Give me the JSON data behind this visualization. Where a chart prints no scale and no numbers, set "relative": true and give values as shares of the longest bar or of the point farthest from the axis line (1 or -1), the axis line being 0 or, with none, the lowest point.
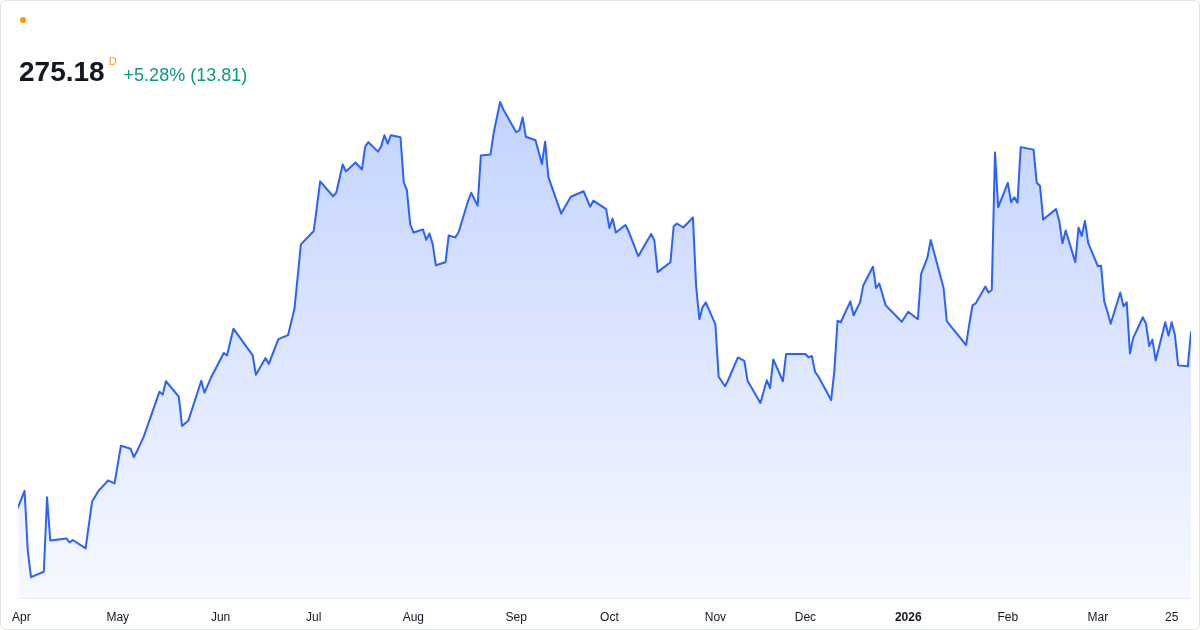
{
  "chart_data": {
    "type": "area",
    "title": "275.18$^{D}$",
    "subtitle": "+5.28% (13.81)",
    "relative": true,
    "tick_labels": "x",
    "xlim": [
      "2025-03-31",
      "2026-03-31"
    ],
    "xticks": [
      {
        "value": "2025-04-01",
        "label": "Apr"
      },
      {
        "value": "2025-05-01",
        "label": "May"
      },
      {
        "value": "2025-06-02",
        "label": "Jun"
      },
      {
        "value": "2025-07-01",
        "label": "Jul"
      },
      {
        "value": "2025-08-01",
        "label": "Aug"
      },
      {
        "value": "2025-09-02",
        "label": "Sep"
      },
      {
        "value": "2025-10-01",
        "label": "Oct"
      },
      {
        "value": "2025-11-03",
        "label": "Nov"
      },
      {
        "value": "2025-12-01",
        "label": "Dec"
      },
      {
        "value": "2026-01-02",
        "label": "2026"
      },
      {
        "value": "2026-02-02",
        "label": "Feb"
      },
      {
        "value": "2026-03-02",
        "label": "Mar"
      },
      {
        "value": "2026-03-25",
        "label": "25"
      }
    ],
    "x": [
      "2025-03-31",
      "2025-04-02",
      "2025-04-03",
      "2025-04-04",
      "2025-04-08",
      "2025-04-09",
      "2025-04-10",
      "2025-04-15",
      "2025-04-16",
      "2025-04-17",
      "2025-04-21",
      "2025-04-23",
      "2025-04-25",
      "2025-04-28",
      "2025-04-30",
      "2025-05-02",
      "2025-05-05",
      "2025-05-06",
      "2025-05-07",
      "2025-05-09",
      "2025-05-14",
      "2025-05-15",
      "2025-05-16",
      "2025-05-20",
      "2025-05-21",
      "2025-05-23",
      "2025-05-27",
      "2025-05-28",
      "2025-05-30",
      "2025-06-03",
      "2025-06-04",
      "2025-06-06",
      "2025-06-12",
      "2025-06-13",
      "2025-06-16",
      "2025-06-17",
      "2025-06-20",
      "2025-06-23",
      "2025-06-25",
      "2025-06-27",
      "2025-07-01",
      "2025-07-03",
      "2025-07-07",
      "2025-07-08",
      "2025-07-10",
      "2025-07-11",
      "2025-07-14",
      "2025-07-16",
      "2025-07-17",
      "2025-07-18",
      "2025-07-21",
      "2025-07-22",
      "2025-07-23",
      "2025-07-24",
      "2025-07-25",
      "2025-07-28",
      "2025-07-29",
      "2025-07-30",
      "2025-07-31",
      "2025-08-01",
      "2025-08-04",
      "2025-08-05",
      "2025-08-06",
      "2025-08-07",
      "2025-08-08",
      "2025-08-11",
      "2025-08-12",
      "2025-08-14",
      "2025-08-15",
      "2025-08-18",
      "2025-08-19",
      "2025-08-21",
      "2025-08-22",
      "2025-08-25",
      "2025-08-26",
      "2025-08-28",
      "2025-08-29",
      "2025-09-02",
      "2025-09-03",
      "2025-09-04",
      "2025-09-05",
      "2025-09-08",
      "2025-09-10",
      "2025-09-11",
      "2025-09-12",
      "2025-09-16",
      "2025-09-19",
      "2025-09-23",
      "2025-09-25",
      "2025-09-26",
      "2025-09-30",
      "2025-10-01",
      "2025-10-02",
      "2025-10-03",
      "2025-10-06",
      "2025-10-07",
      "2025-10-10",
      "2025-10-14",
      "2025-10-15",
      "2025-10-16",
      "2025-10-20",
      "2025-10-21",
      "2025-10-22",
      "2025-10-24",
      "2025-10-27",
      "2025-10-28",
      "2025-10-29",
      "2025-10-30",
      "2025-10-31",
      "2025-11-03",
      "2025-11-04",
      "2025-11-06",
      "2025-11-07",
      "2025-11-10",
      "2025-11-12",
      "2025-11-13",
      "2025-11-17",
      "2025-11-19",
      "2025-11-20",
      "2025-11-21",
      "2025-11-24",
      "2025-11-25",
      "2025-12-01",
      "2025-12-02",
      "2025-12-03",
      "2025-12-04",
      "2025-12-05",
      "2025-12-09",
      "2025-12-10",
      "2025-12-11",
      "2025-12-12",
      "2025-12-15",
      "2025-12-16",
      "2025-12-18",
      "2025-12-19",
      "2025-12-22",
      "2025-12-23",
      "2025-12-24",
      "2025-12-26",
      "2025-12-31",
      "2026-01-02",
      "2026-01-05",
      "2026-01-06",
      "2026-01-08",
      "2026-01-09",
      "2026-01-13",
      "2026-01-14",
      "2026-01-16",
      "2026-01-20",
      "2026-01-21",
      "2026-01-22",
      "2026-01-23",
      "2026-01-26",
      "2026-01-27",
      "2026-01-28",
      "2026-01-29",
      "2026-01-30",
      "2026-02-02",
      "2026-02-03",
      "2026-02-04",
      "2026-02-05",
      "2026-02-06",
      "2026-02-10",
      "2026-02-11",
      "2026-02-12",
      "2026-02-13",
      "2026-02-17",
      "2026-02-18",
      "2026-02-19",
      "2026-02-20",
      "2026-02-23",
      "2026-02-24",
      "2026-02-25",
      "2026-02-26",
      "2026-02-27",
      "2026-03-02",
      "2026-03-03",
      "2026-03-04",
      "2026-03-05",
      "2026-03-06",
      "2026-03-09",
      "2026-03-10",
      "2026-03-11",
      "2026-03-12",
      "2026-03-13",
      "2026-03-16",
      "2026-03-17",
      "2026-03-18",
      "2026-03-19",
      "2026-03-20",
      "2026-03-23",
      "2026-03-24",
      "2026-03-25",
      "2026-03-26",
      "2026-03-27",
      "2026-03-30",
      "2026-03-31"
    ],
    "series": [
      {
        "color": "#2962ff",
        "values": [
          0.183,
          0.216,
          0.096,
          0.042,
          0.053,
          0.203,
          0.116,
          0.12,
          0.112,
          0.117,
          0.1,
          0.194,
          0.216,
          0.237,
          0.231,
          0.307,
          0.301,
          0.284,
          0.296,
          0.324,
          0.416,
          0.41,
          0.437,
          0.406,
          0.347,
          0.358,
          0.438,
          0.414,
          0.444,
          0.494,
          0.489,
          0.543,
          0.489,
          0.45,
          0.484,
          0.472,
          0.522,
          0.53,
          0.583,
          0.713,
          0.74,
          0.84,
          0.81,
          0.817,
          0.874,
          0.86,
          0.878,
          0.864,
          0.91,
          0.919,
          0.9,
          0.911,
          0.933,
          0.916,
          0.933,
          0.929,
          0.838,
          0.822,
          0.754,
          0.737,
          0.743,
          0.722,
          0.735,
          0.714,
          0.671,
          0.677,
          0.731,
          0.727,
          0.736,
          0.8,
          0.817,
          0.791,
          0.892,
          0.894,
          0.938,
          1,
          0.985,
          0.939,
          0.943,
          0.969,
          0.93,
          0.923,
          0.875,
          0.92,
          0.849,
          0.775,
          0.809,
          0.82,
          0.789,
          0.801,
          0.784,
          0.746,
          0.765,
          0.737,
          0.752,
          0.739,
          0.689,
          0.734,
          0.721,
          0.657,
          0.677,
          0.749,
          0.755,
          0.747,
          0.767,
          0.628,
          0.562,
          0.586,
          0.596,
          0.551,
          0.446,
          0.427,
          0.44,
          0.485,
          0.478,
          0.438,
          0.393,
          0.439,
          0.423,
          0.481,
          0.437,
          0.492,
          0.492,
          0.485,
          0.488,
          0.456,
          0.447,
          0.399,
          0.457,
          0.559,
          0.556,
          0.598,
          0.57,
          0.596,
          0.63,
          0.668,
          0.625,
          0.634,
          0.59,
          0.557,
          0.577,
          0.562,
          0.653,
          0.687,
          0.722,
          0.625,
          0.558,
          0.542,
          0.51,
          0.552,
          0.59,
          0.594,
          0.628,
          0.616,
          0.621,
          0.898,
          0.788,
          0.837,
          0.798,
          0.808,
          0.797,
          0.909,
          0.904,
          0.837,
          0.831,
          0.763,
          0.784,
          0.76,
          0.715,
          0.741,
          0.677,
          0.747,
          0.73,
          0.76,
          0.716,
          0.669,
          0.67,
          0.598,
          0.577,
          0.553,
          0.616,
          0.588,
          0.596,
          0.493,
          0.524,
          0.566,
          0.553,
          0.508,
          0.521,
          0.479,
          0.556,
          0.529,
          0.556,
          0.53,
          0.469,
          0.467,
          0.536
        ]
      }
    ]
  }
}
